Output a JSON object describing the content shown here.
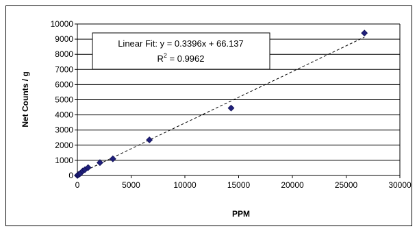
{
  "chart_data": {
    "type": "scatter",
    "title": "",
    "xlabel": "PPM",
    "ylabel": "Net Counts / g",
    "xlim": [
      0,
      30000
    ],
    "ylim": [
      0,
      10000
    ],
    "xticks": [
      0,
      5000,
      10000,
      15000,
      20000,
      25000,
      30000
    ],
    "yticks": [
      0,
      1000,
      2000,
      3000,
      4000,
      5000,
      6000,
      7000,
      8000,
      9000,
      10000
    ],
    "grid": {
      "x": false,
      "y": true
    },
    "legend": "none",
    "marker": "diamond",
    "marker_color": "#1F1F7A",
    "series": [
      {
        "points": [
          [
            0,
            0
          ],
          [
            50,
            30
          ],
          [
            100,
            60
          ],
          [
            200,
            100
          ],
          [
            300,
            150
          ],
          [
            500,
            300
          ],
          [
            700,
            380
          ],
          [
            1000,
            520
          ],
          [
            2100,
            850
          ],
          [
            3300,
            1100
          ],
          [
            6700,
            2350
          ],
          [
            14300,
            4450
          ],
          [
            26700,
            9400
          ]
        ]
      }
    ],
    "trendline": {
      "style": "dashed",
      "slope": 0.3396,
      "intercept": 66.137,
      "x_range": [
        0,
        26700
      ]
    },
    "annotation": {
      "line1": "Linear Fit:  y = 0.3396x + 66.137",
      "r2_prefix": "R",
      "r2_sup": "2",
      "r2_value": " = 0.9962"
    }
  }
}
